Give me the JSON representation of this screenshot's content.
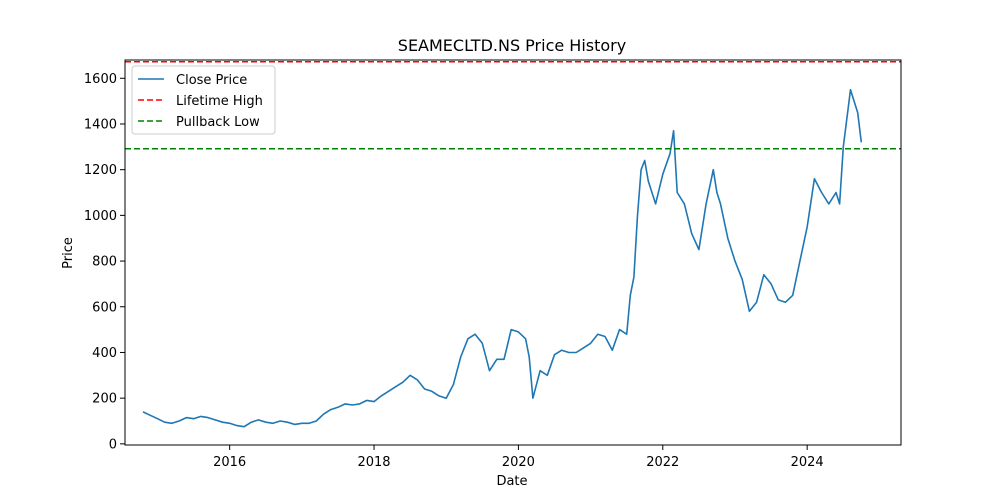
{
  "chart_data": {
    "type": "line",
    "title": "SEAMECLTD.NS Price History",
    "xlabel": "Date",
    "ylabel": "Price",
    "xlim": [
      2014.55,
      2025.3
    ],
    "ylim": [
      -5,
      1680
    ],
    "x_ticks": [
      2016,
      2018,
      2020,
      2022,
      2024
    ],
    "y_ticks": [
      0,
      200,
      400,
      600,
      800,
      1000,
      1200,
      1400,
      1600
    ],
    "grid": false,
    "legend_position": "upper-left",
    "series": [
      {
        "name": "Close Price",
        "color": "#1f77b4",
        "style": "solid",
        "x": [
          2014.8,
          2014.9,
          2015.0,
          2015.1,
          2015.2,
          2015.3,
          2015.4,
          2015.5,
          2015.6,
          2015.7,
          2015.8,
          2015.9,
          2016.0,
          2016.1,
          2016.2,
          2016.3,
          2016.4,
          2016.5,
          2016.6,
          2016.7,
          2016.8,
          2016.9,
          2017.0,
          2017.1,
          2017.2,
          2017.3,
          2017.4,
          2017.5,
          2017.6,
          2017.7,
          2017.8,
          2017.9,
          2018.0,
          2018.1,
          2018.2,
          2018.3,
          2018.4,
          2018.5,
          2018.6,
          2018.7,
          2018.8,
          2018.9,
          2019.0,
          2019.1,
          2019.2,
          2019.3,
          2019.4,
          2019.5,
          2019.6,
          2019.7,
          2019.8,
          2019.9,
          2020.0,
          2020.1,
          2020.15,
          2020.2,
          2020.3,
          2020.4,
          2020.5,
          2020.6,
          2020.7,
          2020.8,
          2020.9,
          2021.0,
          2021.1,
          2021.2,
          2021.3,
          2021.4,
          2021.5,
          2021.55,
          2021.6,
          2021.65,
          2021.7,
          2021.75,
          2021.8,
          2021.9,
          2022.0,
          2022.1,
          2022.15,
          2022.2,
          2022.3,
          2022.4,
          2022.5,
          2022.6,
          2022.7,
          2022.75,
          2022.8,
          2022.9,
          2023.0,
          2023.1,
          2023.2,
          2023.3,
          2023.4,
          2023.5,
          2023.6,
          2023.7,
          2023.8,
          2023.9,
          2024.0,
          2024.1,
          2024.2,
          2024.3,
          2024.4,
          2024.45,
          2024.5,
          2024.6,
          2024.7,
          2024.75
        ],
        "values": [
          140,
          125,
          110,
          95,
          90,
          100,
          115,
          110,
          120,
          115,
          105,
          95,
          90,
          80,
          75,
          95,
          105,
          95,
          90,
          100,
          95,
          85,
          90,
          90,
          100,
          130,
          150,
          160,
          175,
          170,
          175,
          190,
          185,
          210,
          230,
          250,
          270,
          300,
          280,
          240,
          230,
          210,
          200,
          260,
          380,
          460,
          480,
          440,
          320,
          370,
          370,
          500,
          490,
          460,
          380,
          200,
          320,
          300,
          390,
          410,
          400,
          400,
          420,
          440,
          480,
          470,
          410,
          500,
          480,
          650,
          730,
          1000,
          1200,
          1240,
          1150,
          1050,
          1180,
          1270,
          1370,
          1100,
          1050,
          920,
          850,
          1050,
          1200,
          1100,
          1050,
          900,
          800,
          720,
          580,
          620,
          740,
          700,
          630,
          620,
          650,
          800,
          950,
          1160,
          1100,
          1050,
          1100,
          1050,
          1300,
          1550,
          1450,
          1320
        ]
      },
      {
        "name": "Lifetime High",
        "color": "#ff0000",
        "style": "dashed",
        "y": 1672
      },
      {
        "name": "Pullback Low",
        "color": "#008000",
        "style": "dashed",
        "y": 1292
      }
    ]
  }
}
